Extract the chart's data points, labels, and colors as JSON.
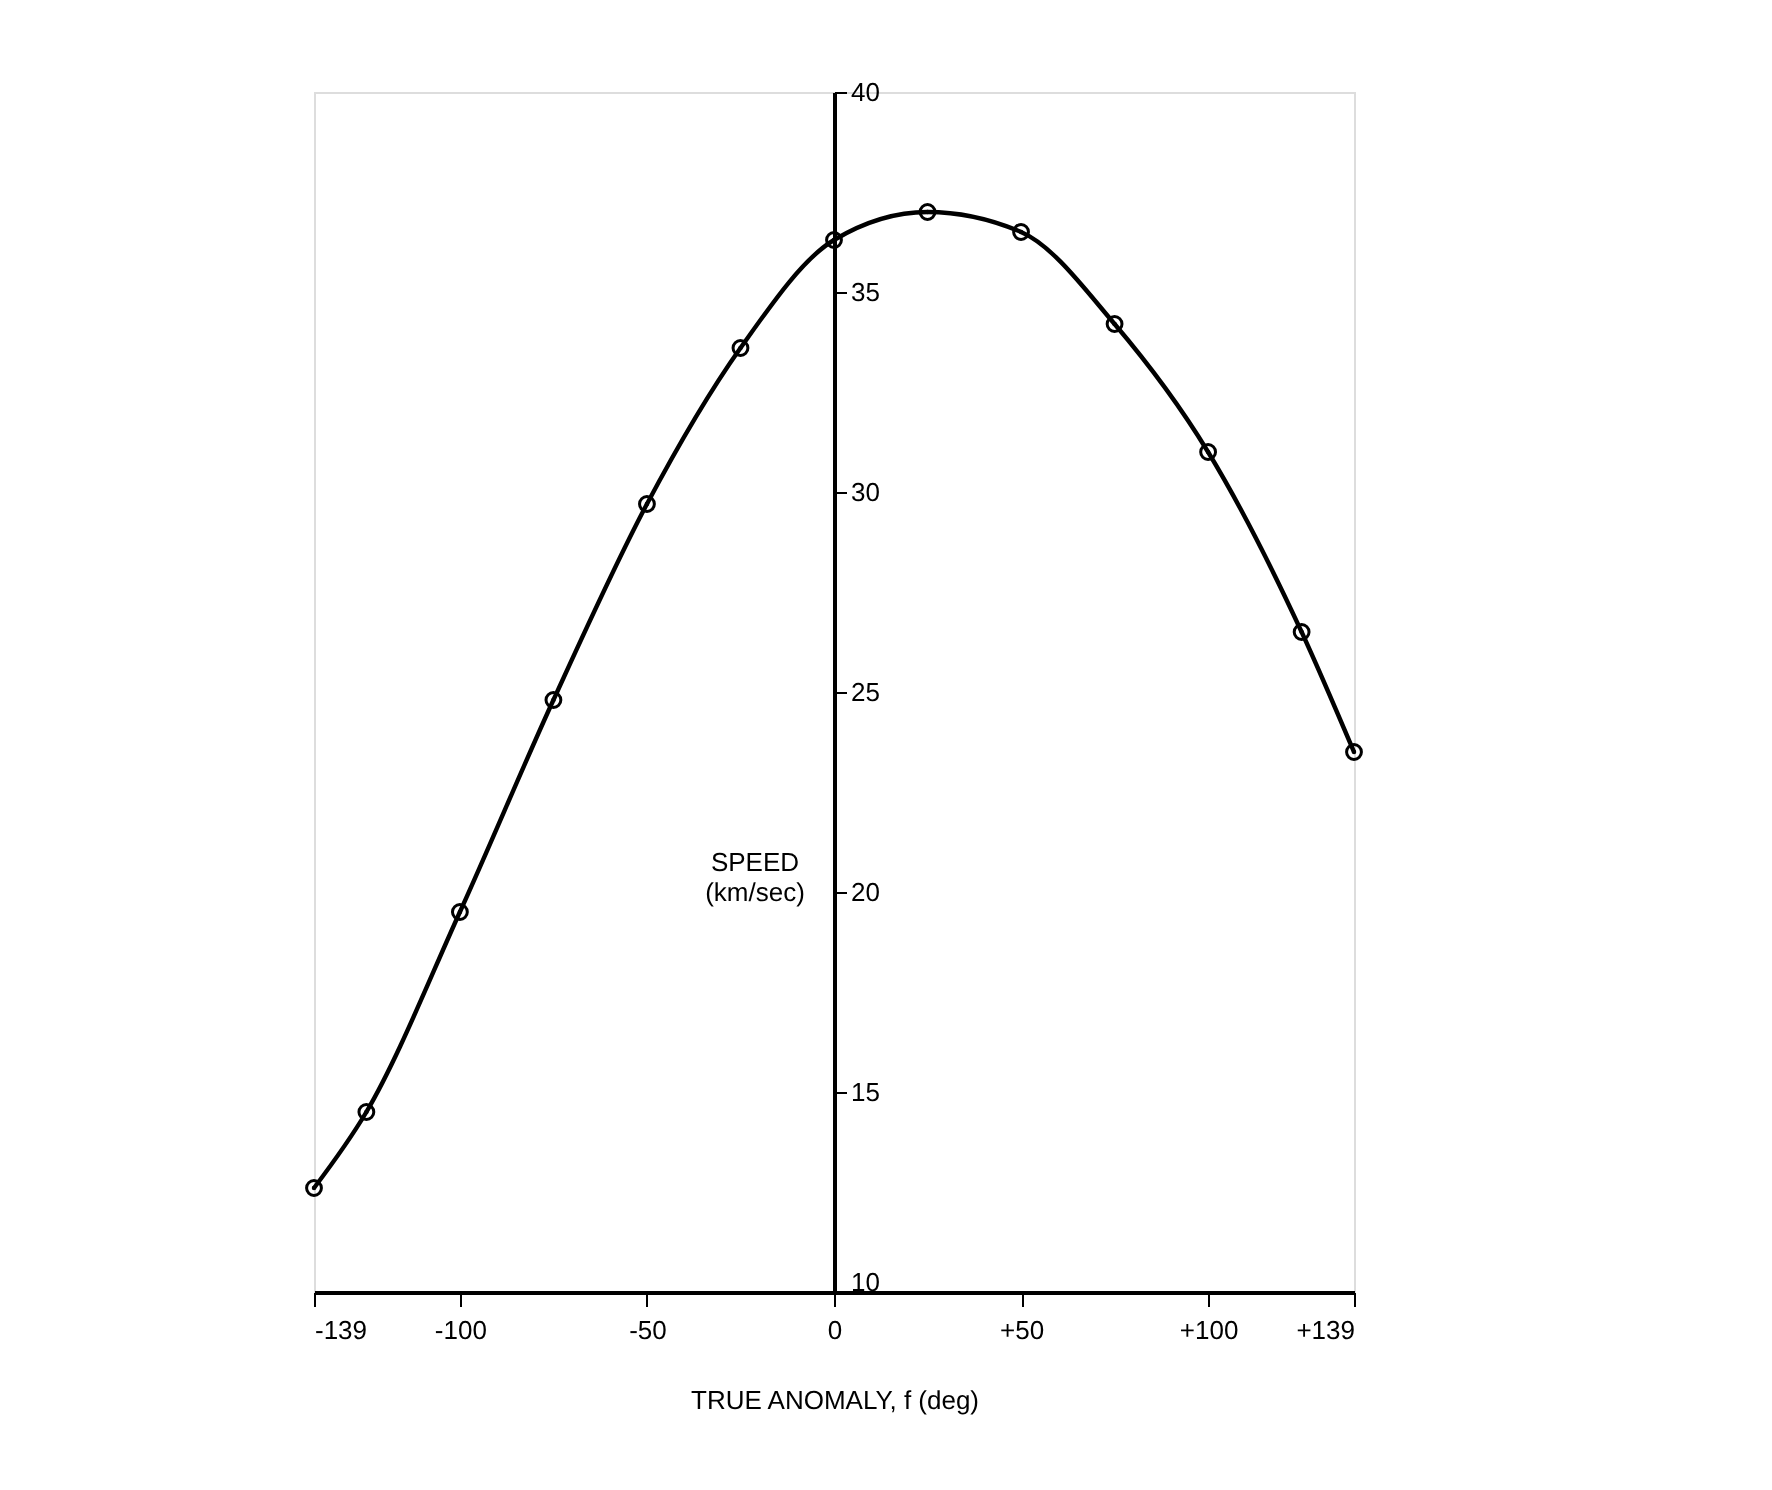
{
  "chart_data": {
    "type": "line",
    "xlabel": "TRUE ANOMALY, f (deg)",
    "ylabel": "SPEED\n(km/sec)",
    "x": [
      -139,
      -125,
      -100,
      -75,
      -50,
      -25,
      0,
      25,
      50,
      75,
      100,
      125,
      139
    ],
    "series": [
      {
        "color": "#000000",
        "values": [
          12.6,
          14.5,
          19.5,
          24.8,
          29.7,
          33.6,
          36.3,
          37.0,
          36.5,
          34.2,
          31.0,
          26.5,
          23.5
        ]
      }
    ],
    "xlim": [
      -139,
      139
    ],
    "ylim": [
      10,
      40
    ],
    "xticks": [
      -139,
      -100,
      -50,
      0,
      {
        "value": 50,
        "label": "+50"
      },
      {
        "value": 100,
        "label": "+100"
      },
      {
        "value": 139,
        "label": "+139"
      }
    ],
    "yticks": [
      10,
      15,
      20,
      25,
      30,
      35,
      40
    ],
    "marker": "circle",
    "line_style": "solid",
    "grid": false
  }
}
